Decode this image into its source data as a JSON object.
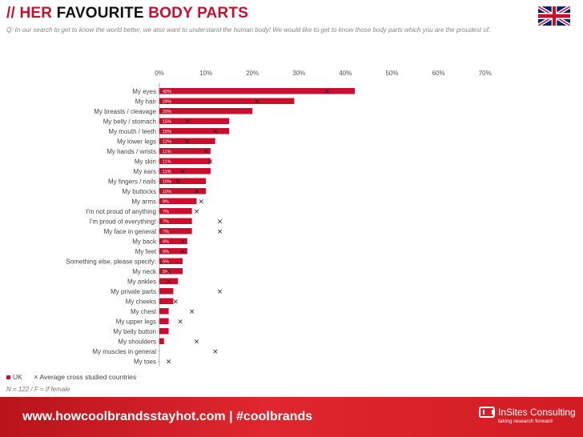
{
  "header": {
    "prefix": "// ",
    "title_word1": "HER",
    "title_word2": "FAVOURITE",
    "title_word3": "BODY PARTS",
    "subtitle": "Q: In our search to get to know the world better, we also want to understand the human body! We would like to get to know those body parts which you are the proudest of."
  },
  "chart_data": {
    "type": "bar",
    "orientation": "horizontal",
    "categories": [
      "My eyes",
      "My hair",
      "My breasts / cleavage",
      "My belly / stomach",
      "My mouth / teeth",
      "My lower legs",
      "My hands / wrists",
      "My skin",
      "My ears",
      "My fingers / nails",
      "My buttocks",
      "My arms",
      "I'm not proud of anything",
      "I'm proud of everything!",
      "My face in general",
      "My back",
      "My feet",
      "Something else, please specify:",
      "My neck",
      "My ankles",
      "My private parts",
      "My cheeks",
      "My chest",
      "My upper legs",
      "My belly button",
      "My shoulders",
      "My muscles in general",
      "My toes"
    ],
    "series": [
      {
        "name": "UK",
        "values": [
          42,
          29,
          20,
          15,
          15,
          12,
          11,
          11,
          11,
          10,
          10,
          8,
          7,
          7,
          7,
          6,
          6,
          5,
          5,
          4,
          3,
          3,
          2,
          2,
          2,
          1,
          0,
          0
        ],
        "labels": [
          "42%",
          "29%",
          "20%",
          "15%",
          "15%",
          "12%",
          "11%",
          "11%",
          "11%",
          "10%",
          "10%",
          "8%",
          "7%",
          "7%",
          "7%",
          "6%",
          "6%",
          "5%",
          "5%",
          "",
          "",
          "",
          "",
          "",
          "",
          "",
          "",
          ""
        ]
      },
      {
        "name": "Average cross studied countries",
        "values": [
          36,
          21,
          null,
          6,
          12,
          6,
          10,
          11,
          5,
          4,
          8,
          9,
          8,
          13,
          13,
          5,
          5,
          null,
          2,
          2,
          13,
          3.5,
          7,
          4.5,
          null,
          8,
          12,
          2
        ]
      }
    ],
    "xlim": [
      0,
      70
    ],
    "xticks": [
      0,
      10,
      20,
      30,
      40,
      50,
      60,
      70
    ],
    "xtick_labels": [
      "0%",
      "10%",
      "20%",
      "30%",
      "40%",
      "50%",
      "60%",
      "70%"
    ],
    "grid": false,
    "legend_position": "bottom-left",
    "colors": {
      "bar": "#c8102e",
      "marker": "#222222"
    }
  },
  "legend": {
    "uk": "UK",
    "avg": "Average cross studied countries",
    "marker_glyph": "×"
  },
  "note": "N = 122 / F = If female",
  "footer": {
    "url": "www.howcoolbrandsstayhot.com  |  #coolbrands",
    "brand": "InSites Consulting",
    "tagline": "taking research forward"
  }
}
